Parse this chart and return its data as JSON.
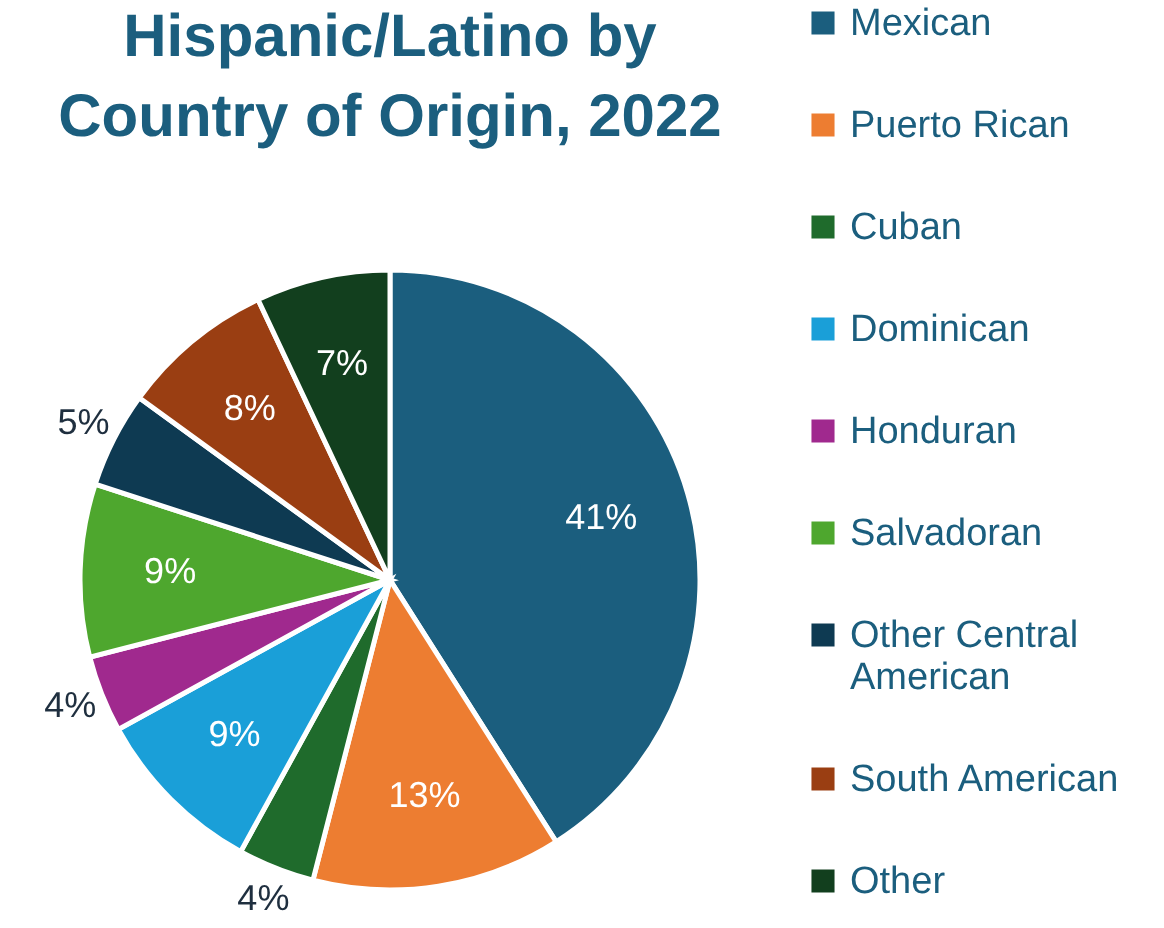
{
  "chart_data": {
    "type": "pie",
    "title": "Hispanic/Latino by Country of Origin, 2022",
    "categories": [
      "Mexican",
      "Puerto Rican",
      "Cuban",
      "Dominican",
      "Honduran",
      "Salvadoran",
      "Other Central American",
      "South American",
      "Other"
    ],
    "values": [
      41,
      13,
      4,
      9,
      4,
      9,
      5,
      8,
      7
    ],
    "value_labels": [
      "41%",
      "13%",
      "4%",
      "9%",
      "4%",
      "9%",
      "5%",
      "8%",
      "7%"
    ],
    "colors": [
      "#1b5e7e",
      "#ed7d31",
      "#1f6b2c",
      "#1a9fd8",
      "#a0298e",
      "#4ea72e",
      "#0e3a52",
      "#9a3e12",
      "#123f1e"
    ],
    "legend": "right"
  }
}
